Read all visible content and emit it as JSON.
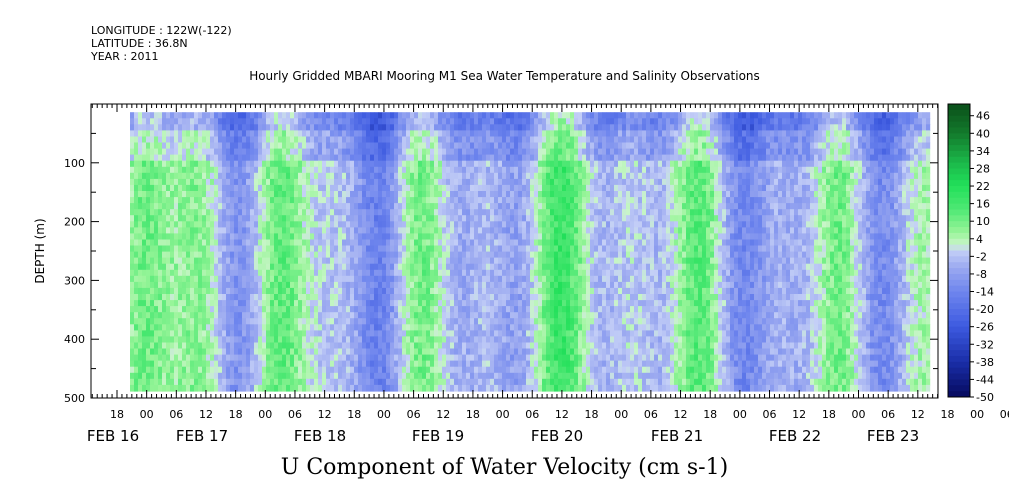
{
  "header": {
    "longitude": "LONGITUDE : 122W(-122)",
    "latitude": "LATITUDE : 36.8N",
    "year": "YEAR : 2011"
  },
  "chart_data": {
    "type": "heatmap",
    "title": "Hourly Gridded MBARI Mooring M1 Sea Water Temperature and Salinity Observations",
    "xlabel": "U Component of Water Velocity (cm s-1)",
    "ylabel": "DEPTH (m)",
    "ylim": [
      500,
      0
    ],
    "y_ticks": [
      100,
      200,
      300,
      400,
      500
    ],
    "x_hour_labels": [
      "18",
      "00",
      "06",
      "12",
      "18",
      "00",
      "06",
      "12",
      "18",
      "00",
      "06",
      "12",
      "18",
      "00",
      "06",
      "12",
      "18",
      "00",
      "06",
      "12",
      "18",
      "00",
      "06",
      "12",
      "18",
      "00",
      "06",
      "12",
      "18",
      "00",
      "06",
      "12"
    ],
    "x_date_labels": [
      "FEB 16",
      "FEB 17",
      "FEB 18",
      "FEB 19",
      "FEB 20",
      "FEB 21",
      "FEB 22",
      "FEB 23"
    ],
    "colorbar": {
      "labels": [
        "46",
        "40",
        "34",
        "28",
        "22",
        "16",
        "10",
        "4",
        "-2",
        "-8",
        "-14",
        "-20",
        "-26",
        "-32",
        "-38",
        "-44",
        "-50"
      ],
      "range": [
        -50,
        50
      ]
    },
    "colors": {
      "strong_positive": "#0a4f1a",
      "positive": "#22e05a",
      "weak_positive": "#9af59a",
      "near_zero": "#c8d6f5",
      "weak_negative": "#9aa8f0",
      "negative": "#6f86ee",
      "strong_negative": "#060a6a"
    }
  }
}
